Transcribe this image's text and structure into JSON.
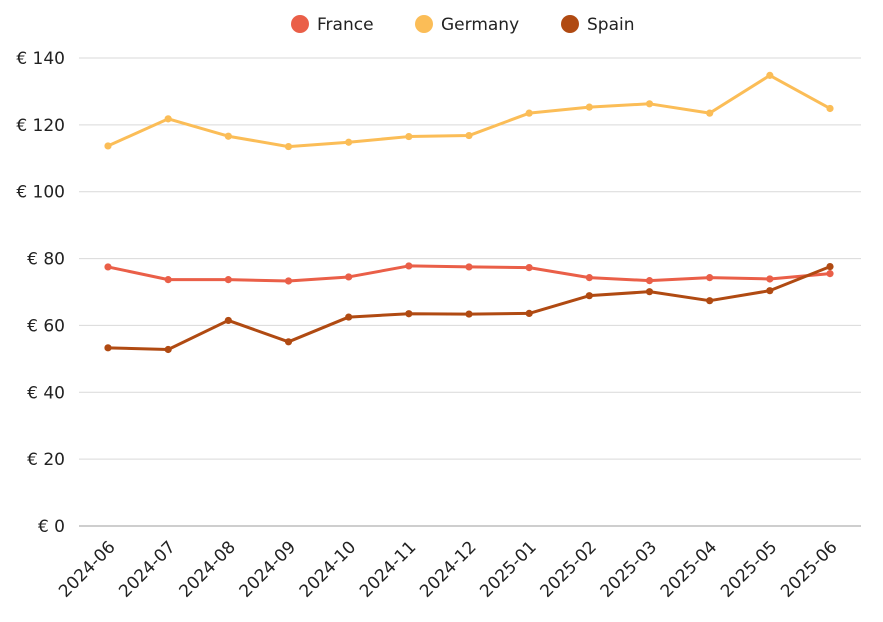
{
  "chart_data": {
    "type": "line",
    "x": [
      "2024-06",
      "2024-07",
      "2024-08",
      "2024-09",
      "2024-10",
      "2024-11",
      "2024-12",
      "2025-01",
      "2025-02",
      "2025-03",
      "2025-04",
      "2025-05",
      "2025-06"
    ],
    "y_tick_labels": [
      "€ 0",
      "€ 20",
      "€ 40",
      "€ 60",
      "€ 80",
      "€ 100",
      "€ 120",
      "€ 140"
    ],
    "y_ticks": [
      0,
      20,
      40,
      60,
      80,
      100,
      120,
      140
    ],
    "ylim": [
      0,
      140
    ],
    "grid": true,
    "legend_position": "top-center",
    "series": [
      {
        "name": "France",
        "color": "#ea5f48",
        "values": [
          77.5,
          73.7,
          73.7,
          73.3,
          74.5,
          77.8,
          77.5,
          77.3,
          74.3,
          73.4,
          74.3,
          73.9,
          75.5
        ]
      },
      {
        "name": "Germany",
        "color": "#fbbd57",
        "values": [
          113.7,
          121.8,
          116.6,
          113.5,
          114.8,
          116.5,
          116.8,
          123.5,
          125.3,
          126.3,
          123.5,
          134.8,
          124.9
        ]
      },
      {
        "name": "Spain",
        "color": "#b04a12",
        "values": [
          53.3,
          52.8,
          61.5,
          55.1,
          62.5,
          63.5,
          63.4,
          63.6,
          68.9,
          70.1,
          67.4,
          70.4,
          77.6
        ]
      }
    ]
  }
}
